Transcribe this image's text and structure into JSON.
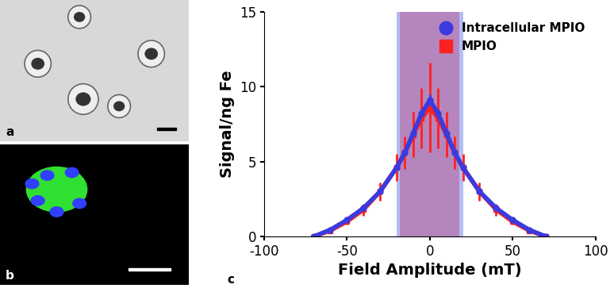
{
  "panel_labels": [
    "a",
    "b",
    "c"
  ],
  "chart_data": {
    "type": "line",
    "x_label": "Field Amplitude (mT)",
    "y_label": "Signal/ng Fe",
    "xlim": [
      -100,
      100
    ],
    "xticks": [
      -100,
      -50,
      0,
      50,
      100
    ],
    "ylim": [
      0,
      15
    ],
    "yticks": [
      0,
      5,
      10,
      15
    ],
    "legend": "upper right",
    "grid": false,
    "series": [
      {
        "name": "MPIO",
        "color": "#ff2020",
        "marker": "square",
        "band": [
          -18,
          18
        ],
        "band_color": "#ff2020",
        "x": [
          -70,
          -60,
          -50,
          -40,
          -30,
          -20,
          -15,
          -10,
          -5,
          0,
          5,
          10,
          15,
          20,
          30,
          40,
          50,
          60,
          70
        ],
        "values": [
          0,
          0.4,
          1.0,
          1.8,
          3.0,
          4.6,
          5.6,
          6.8,
          7.9,
          8.6,
          7.9,
          6.8,
          5.6,
          4.6,
          3.0,
          1.8,
          1.0,
          0.4,
          0
        ],
        "error": [
          0,
          0.1,
          0.2,
          0.4,
          0.6,
          0.9,
          1.1,
          1.5,
          2.0,
          3.0,
          2.0,
          1.5,
          1.1,
          0.9,
          0.6,
          0.4,
          0.2,
          0.1,
          0
        ]
      },
      {
        "name": "Intracellular MPIO",
        "color": "#3a3ae0",
        "marker": "circle",
        "band": [
          -20,
          20
        ],
        "band_color": "#5a6ee8",
        "x": [
          -70,
          -60,
          -50,
          -40,
          -30,
          -20,
          -15,
          -10,
          -5,
          0,
          5,
          10,
          15,
          20,
          30,
          40,
          50,
          60,
          70
        ],
        "values": [
          0,
          0.45,
          1.1,
          1.9,
          3.0,
          4.6,
          5.6,
          6.9,
          8.2,
          9.1,
          8.2,
          6.9,
          5.6,
          4.6,
          3.0,
          1.9,
          1.1,
          0.45,
          0
        ],
        "error": [
          0,
          0.05,
          0.1,
          0.1,
          0.15,
          0.2,
          0.25,
          0.3,
          0.35,
          0.4,
          0.35,
          0.3,
          0.25,
          0.2,
          0.15,
          0.1,
          0.1,
          0.05,
          0
        ]
      }
    ]
  }
}
